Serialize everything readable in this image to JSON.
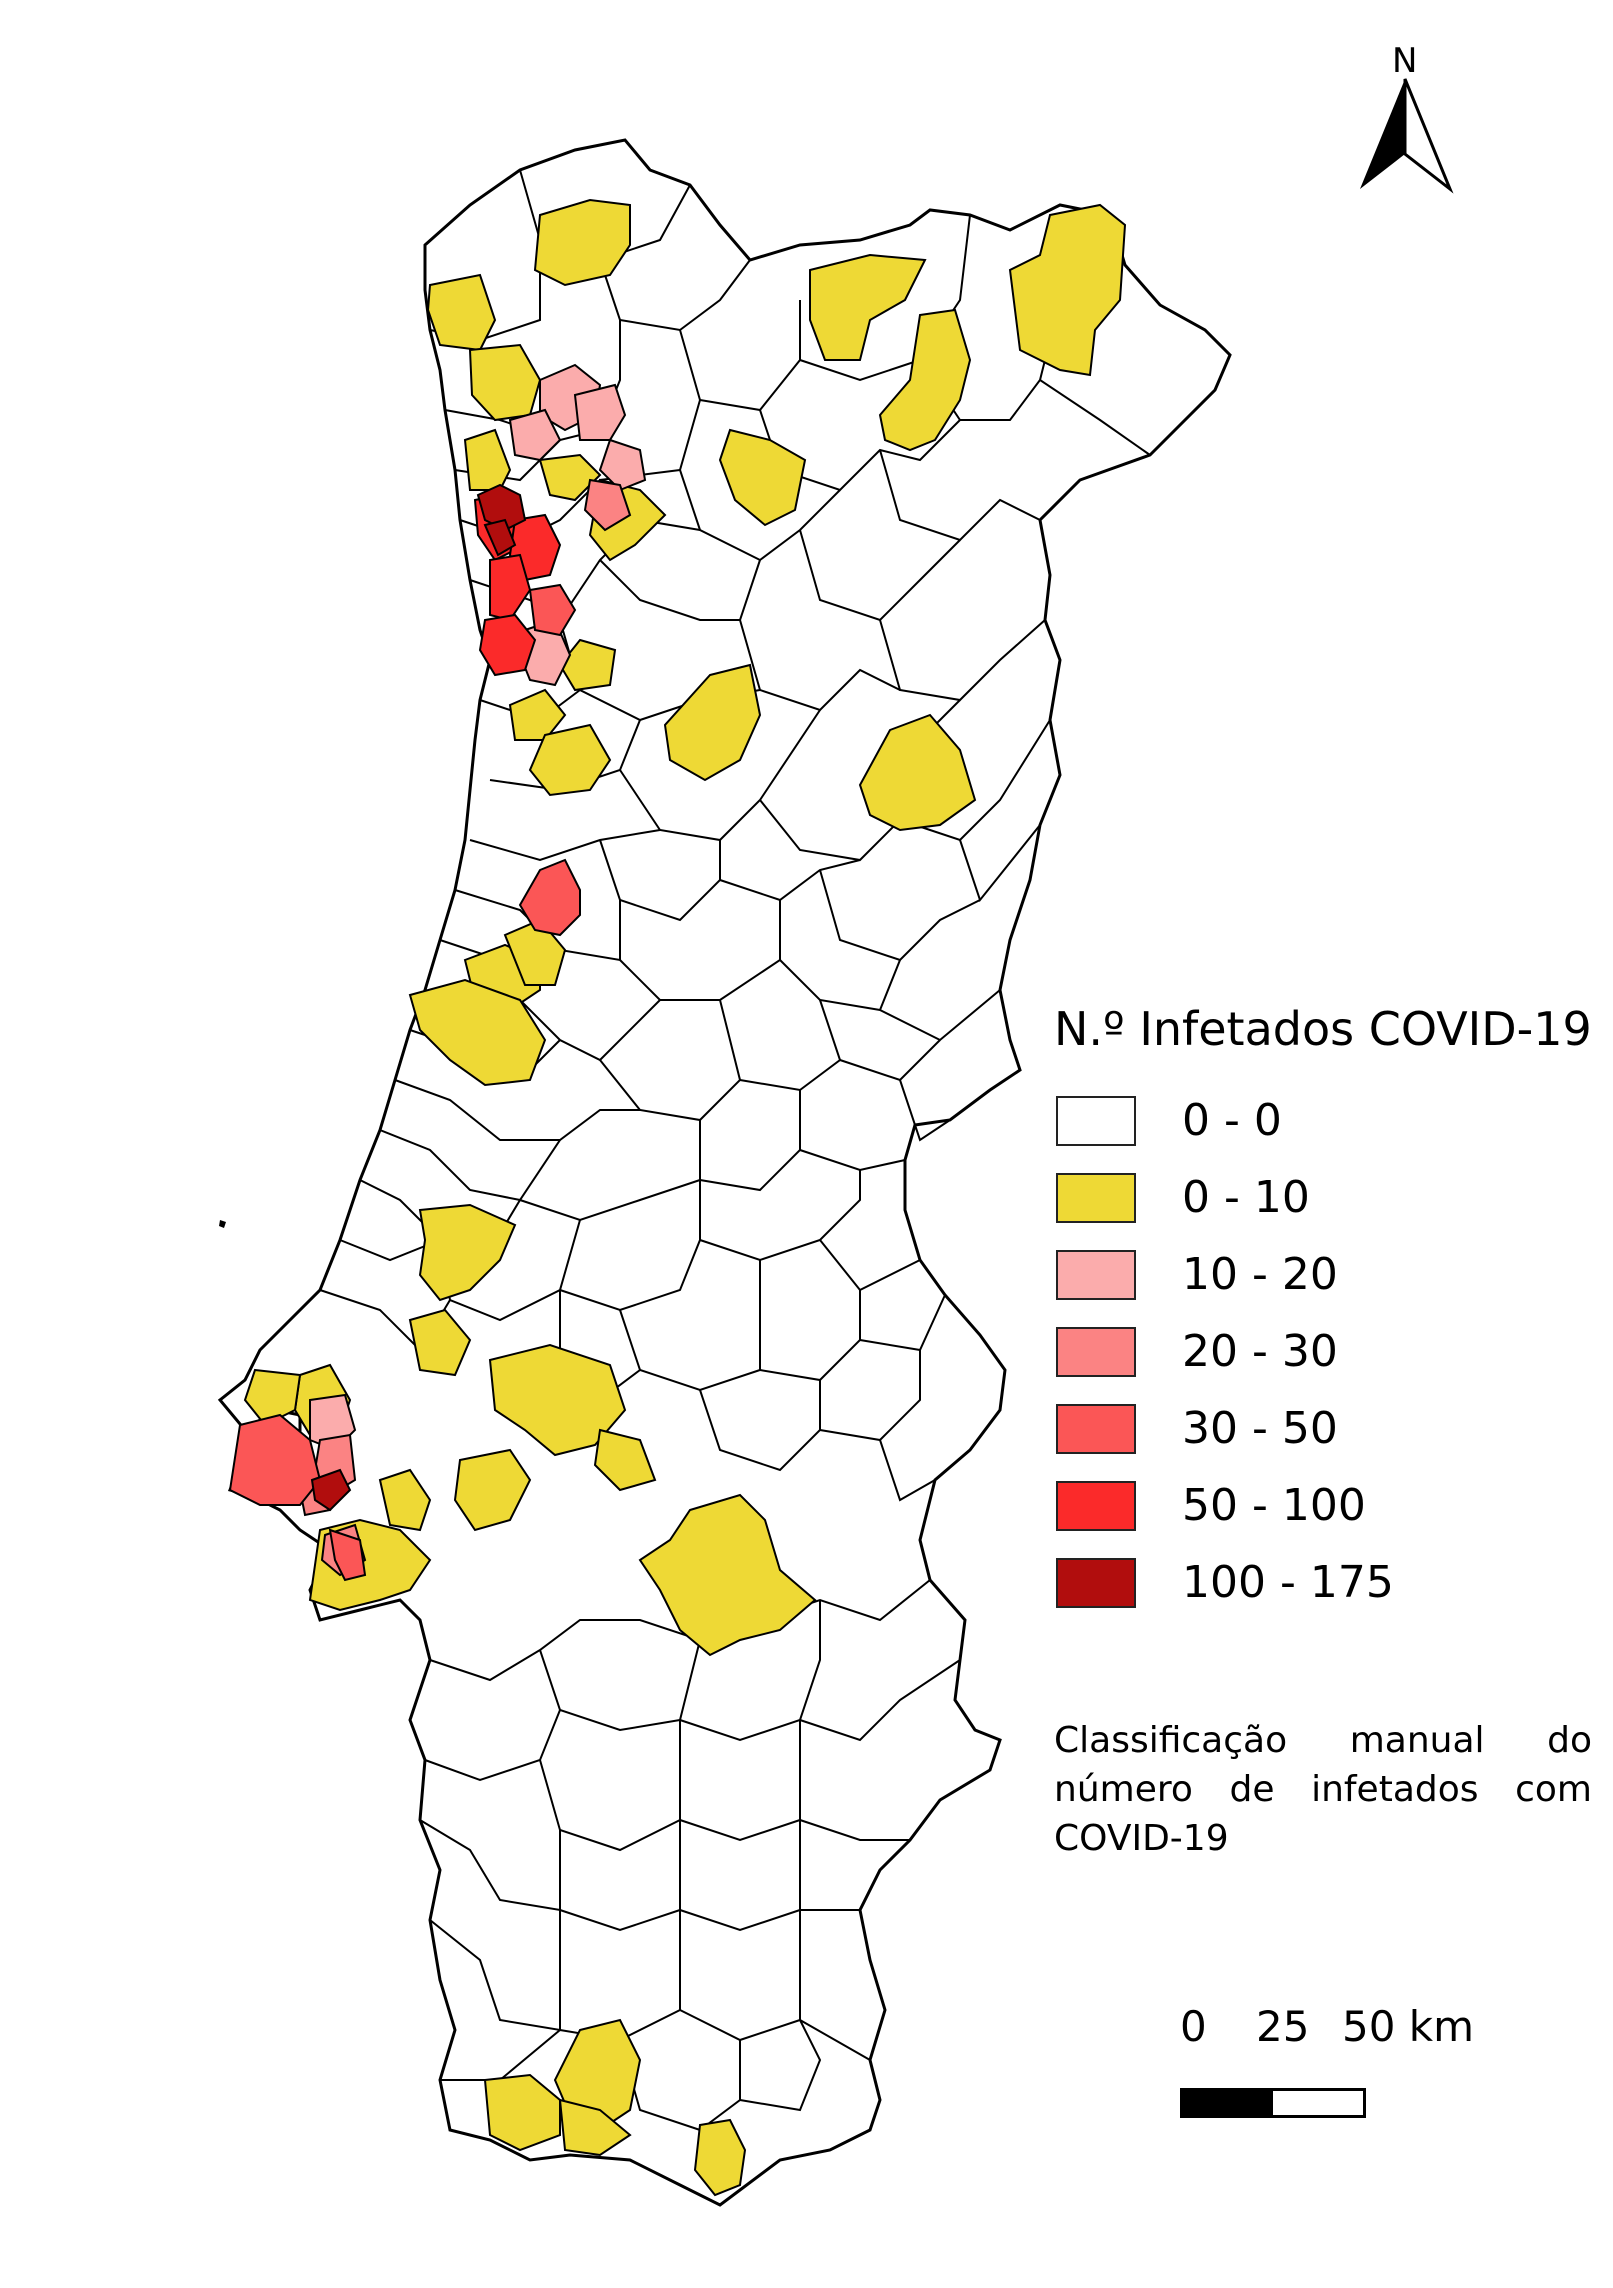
{
  "map": {
    "colors": {
      "outline": "#000000",
      "c0": "#ffffff",
      "c1": "#eed935",
      "c2": "#fbacac",
      "c3": "#fb8383",
      "c4": "#fb5656",
      "c5": "#fb2a2a",
      "c6": "#b10d0d"
    }
  },
  "north_arrow": {
    "label": "N"
  },
  "legend": {
    "title": "N.º Infetados COVID-19",
    "classes": [
      {
        "label": "0 - 0",
        "color": "#ffffff"
      },
      {
        "label": "0 - 10",
        "color": "#eed935"
      },
      {
        "label": "10 - 20",
        "color": "#fbacac"
      },
      {
        "label": "20 - 30",
        "color": "#fb8383"
      },
      {
        "label": "30 - 50",
        "color": "#fb5656"
      },
      {
        "label": "50 - 100",
        "color": "#fb2a2a"
      },
      {
        "label": "100 - 175",
        "color": "#b10d0d"
      }
    ]
  },
  "caption": "Classificação manual do número de infetados com COVID-19",
  "scale_bar": {
    "labels": [
      "0",
      "25",
      "50 km"
    ]
  }
}
